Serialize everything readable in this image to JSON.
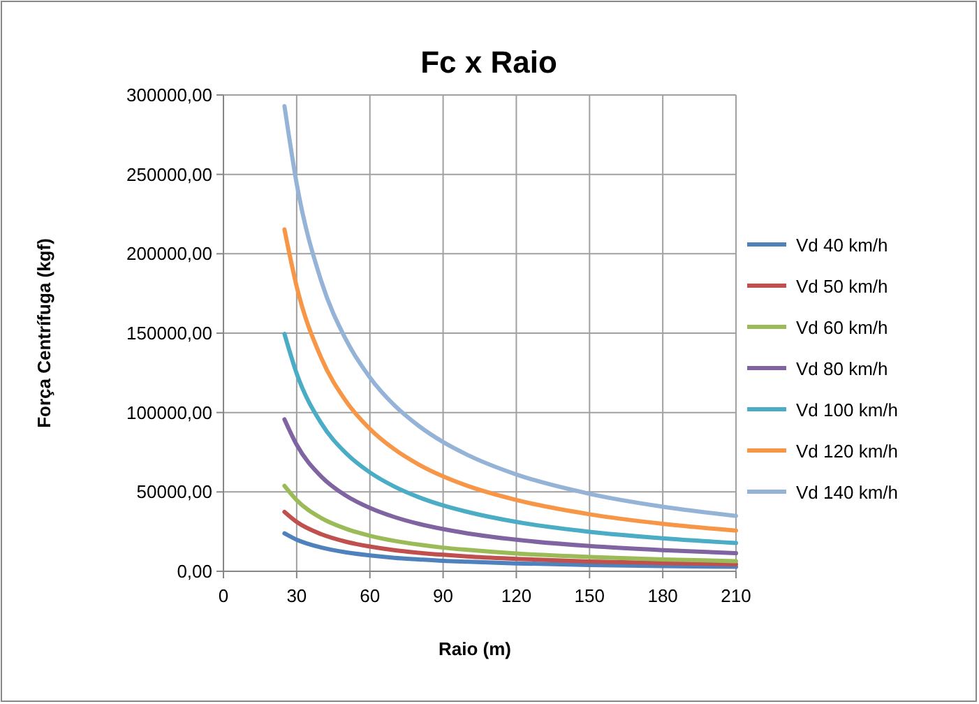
{
  "chart_data": {
    "type": "line",
    "title": "Fc x Raio",
    "xlabel": "Raio (m)",
    "ylabel": "Força Centrífuga (kgf)",
    "x": [
      25,
      30,
      40,
      50,
      60,
      70,
      80,
      90,
      100,
      120,
      150,
      180,
      210
    ],
    "series": [
      {
        "name": "Vd 40 km/h",
        "color": "#4f81bd",
        "values": [
          23900,
          19900,
          15000,
          12000,
          10000,
          8500,
          7500,
          6600,
          6000,
          5000,
          4000,
          3300,
          2800
        ]
      },
      {
        "name": "Vd 50 km/h",
        "color": "#c0504d",
        "values": [
          37400,
          31100,
          23400,
          18700,
          15600,
          13300,
          11700,
          10400,
          9300,
          7800,
          6200,
          5200,
          4400
        ]
      },
      {
        "name": "Vd 60 km/h",
        "color": "#9bbb59",
        "values": [
          53800,
          44800,
          33600,
          26900,
          22400,
          19200,
          16800,
          14900,
          13500,
          11200,
          9000,
          7500,
          6400
        ]
      },
      {
        "name": "Vd 80 km/h",
        "color": "#8064a2",
        "values": [
          95700,
          79700,
          59800,
          47800,
          39900,
          34200,
          29900,
          26600,
          23900,
          19900,
          15900,
          13300,
          11400
        ]
      },
      {
        "name": "Vd 100 km/h",
        "color": "#4bacc6",
        "values": [
          149500,
          124600,
          93400,
          74700,
          62300,
          53400,
          46700,
          41500,
          37400,
          31100,
          24900,
          20800,
          17800
        ]
      },
      {
        "name": "Vd 120 km/h",
        "color": "#f79646",
        "values": [
          215300,
          179400,
          134600,
          107600,
          89700,
          76900,
          67300,
          59800,
          53800,
          44900,
          35900,
          29900,
          25600
        ]
      },
      {
        "name": "Vd 140 km/h",
        "color": "#95b3d7",
        "values": [
          293000,
          244200,
          183100,
          146500,
          122100,
          104600,
          91600,
          81400,
          73300,
          61000,
          48800,
          40700,
          34900
        ]
      }
    ],
    "xlim": [
      0,
      210
    ],
    "xticks": [
      0,
      30,
      60,
      90,
      120,
      150,
      180,
      210
    ],
    "ylim": [
      0,
      300000
    ],
    "yticks": [
      {
        "value": 0,
        "label": "0,00"
      },
      {
        "value": 50000,
        "label": "50000,00"
      },
      {
        "value": 100000,
        "label": "100000,00"
      },
      {
        "value": 150000,
        "label": "150000,00"
      },
      {
        "value": 200000,
        "label": "200000,00"
      },
      {
        "value": 250000,
        "label": "250000,00"
      },
      {
        "value": 300000,
        "label": "300000,00"
      }
    ],
    "grid": true,
    "legend": "right",
    "marker": "none",
    "line_style": "solid"
  }
}
